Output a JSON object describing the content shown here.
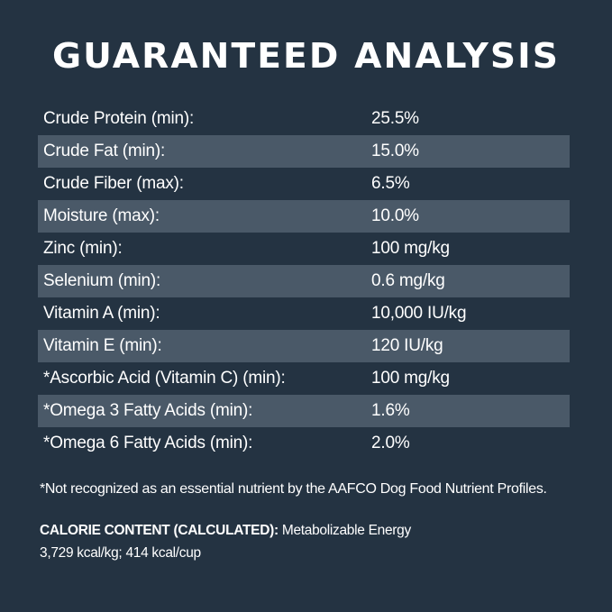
{
  "title": "GUARANTEED ANALYSIS",
  "rows": [
    {
      "label": "Crude Protein (min):",
      "value": "25.5%"
    },
    {
      "label": "Crude Fat (min):",
      "value": "15.0%"
    },
    {
      "label": "Crude Fiber (max):",
      "value": "6.5%"
    },
    {
      "label": "Moisture (max):",
      "value": "10.0%"
    },
    {
      "label": "Zinc (min):",
      "value": "100 mg/kg"
    },
    {
      "label": "Selenium (min):",
      "value": "0.6 mg/kg"
    },
    {
      "label": "Vitamin A (min):",
      "value": "10,000 IU/kg"
    },
    {
      "label": "Vitamin E (min):",
      "value": "120 IU/kg"
    },
    {
      "label": "*Ascorbic Acid (Vitamin C) (min):",
      "value": "100 mg/kg"
    },
    {
      "label": "*Omega 3 Fatty Acids (min):",
      "value": "1.6%"
    },
    {
      "label": "*Omega 6 Fatty Acids (min):",
      "value": "2.0%"
    }
  ],
  "footnote": "*Not recognized as an essential nutrient by the AAFCO Dog Food Nutrient Profiles.",
  "calorie": {
    "label": "CALORIE CONTENT (CALCULATED):",
    "text": " Metabolizable Energy",
    "values": "3,729 kcal/kg; 414 kcal/cup"
  },
  "colors": {
    "background": "#243342",
    "shaded_row": "#4a5968",
    "text": "#ffffff"
  }
}
